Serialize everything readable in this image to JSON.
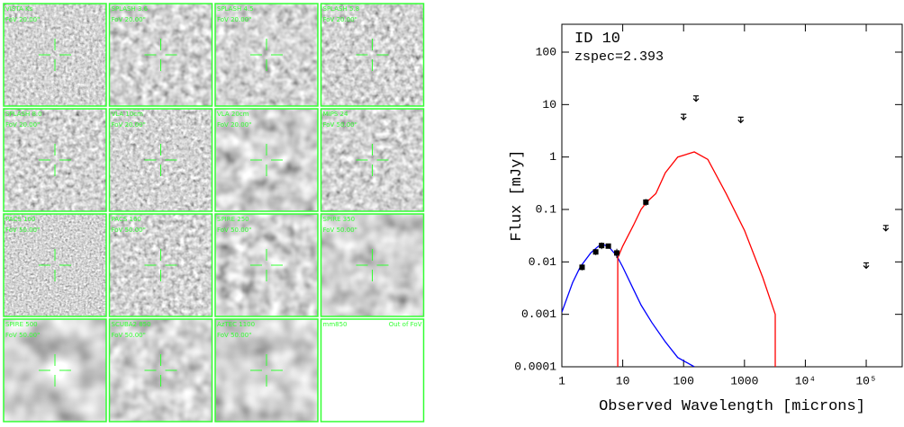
{
  "panels": [
    {
      "band": "VISTA Ks",
      "fov": "FoV 20.00\""
    },
    {
      "band": "SPLASH 3.6",
      "fov": "FoV 20.00\""
    },
    {
      "band": "SPLASH 4.5",
      "fov": "FoV 20.00\""
    },
    {
      "band": "SPLASH 5.8",
      "fov": "FoV 20.00\""
    },
    {
      "band": "SPLASH 8.0",
      "fov": "FoV 20.00\""
    },
    {
      "band": "VLA 10cm",
      "fov": "FoV 20.00\""
    },
    {
      "band": "VLA 20cm",
      "fov": "FoV 20.00\""
    },
    {
      "band": "MIPS 24",
      "fov": "FoV 50.00\""
    },
    {
      "band": "PACS 100",
      "fov": "FoV 50.00\""
    },
    {
      "band": "PACS 160",
      "fov": "FoV 50.00\""
    },
    {
      "band": "SPIRE 250",
      "fov": "FoV 50.00\""
    },
    {
      "band": "SPIRE 350",
      "fov": "FoV 50.00\""
    },
    {
      "band": "SPIRE 500",
      "fov": "FoV 50.00\""
    },
    {
      "band": "SCUBA2 850",
      "fov": "FoV 50.00\""
    },
    {
      "band": "AzTEC 1100",
      "fov": "FoV 50.00\""
    },
    {
      "band": "mm850",
      "status": "Out of FoV"
    }
  ],
  "chart_data": {
    "type": "line",
    "annotations": [
      "ID 10",
      "zspec=2.393"
    ],
    "x_label": "Observed Wavelength [microns]",
    "y_label": "Flux [mJy]",
    "log_x": true,
    "log_y": true,
    "xlim": [
      1,
      390000
    ],
    "ylim": [
      0.0001,
      340
    ],
    "xticks": [
      1,
      10,
      100,
      1000,
      {
        "value": 10000,
        "label": "10⁴"
      },
      {
        "value": 100000,
        "label": "10⁵"
      }
    ],
    "yticks": [
      0.0001,
      0.001,
      0.01,
      0.1,
      1,
      10,
      100
    ],
    "series": [
      {
        "color": "#0000ff",
        "x": [
          1,
          1.5,
          2,
          3,
          4,
          5,
          6,
          8,
          10,
          15,
          20,
          30,
          50,
          80,
          150
        ],
        "values": [
          0.0011,
          0.004,
          0.008,
          0.015,
          0.02,
          0.021,
          0.019,
          0.013,
          0.008,
          0.003,
          0.0015,
          0.0007,
          0.0003,
          0.00015,
          0.0001
        ]
      },
      {
        "color": "#ff0000",
        "x": [
          8.3,
          8.3,
          10,
          15,
          20,
          25,
          35,
          50,
          80,
          150,
          250,
          500,
          1000,
          2000,
          3200,
          3200
        ],
        "values": [
          0.0001,
          0.012,
          0.02,
          0.05,
          0.1,
          0.14,
          0.2,
          0.5,
          1.0,
          1.25,
          0.9,
          0.2,
          0.04,
          0.005,
          0.001,
          0.0001
        ]
      }
    ],
    "points": {
      "color": "#000000",
      "x": [
        2.15,
        3.6,
        4.5,
        5.8,
        8.0,
        24
      ],
      "values": [
        0.0079,
        0.0155,
        0.0205,
        0.02,
        0.0148,
        0.138
      ],
      "errors": [
        0.001,
        0.002,
        0.003,
        0.002,
        0.003,
        0.02
      ]
    },
    "upper_limits": {
      "color": "#000000",
      "x": [
        100,
        160,
        870,
        100000,
        210000
      ],
      "values": [
        5.8,
        13,
        5.1,
        0.0085,
        0.044
      ]
    }
  }
}
